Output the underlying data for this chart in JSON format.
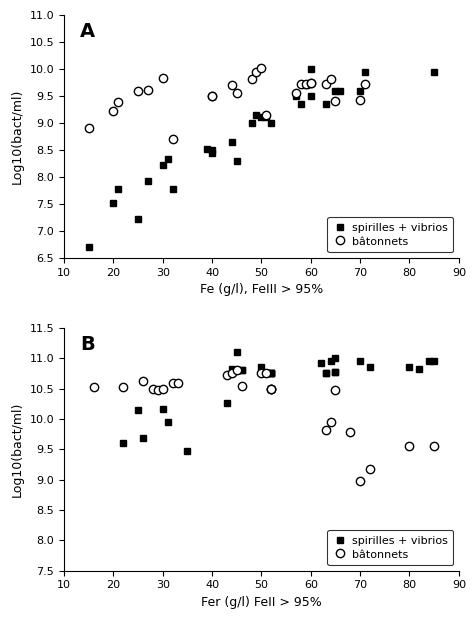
{
  "panel_A": {
    "label": "A",
    "spirilles_x": [
      15,
      20,
      21,
      25,
      27,
      30,
      31,
      32,
      39,
      40,
      40,
      44,
      45,
      48,
      49,
      50,
      51,
      52,
      57,
      58,
      59,
      59,
      60,
      60,
      63,
      65,
      66,
      70,
      71,
      85
    ],
    "spirilles_y": [
      6.7,
      7.52,
      7.78,
      7.22,
      7.92,
      8.22,
      8.33,
      7.78,
      8.52,
      8.5,
      8.45,
      8.65,
      8.3,
      9.0,
      9.15,
      9.12,
      9.12,
      9.0,
      9.5,
      9.35,
      9.7,
      9.72,
      9.5,
      10.0,
      9.35,
      9.6,
      9.6,
      9.6,
      9.95,
      9.95
    ],
    "batonnets_x": [
      15,
      20,
      21,
      25,
      27,
      30,
      32,
      40,
      40,
      44,
      45,
      48,
      49,
      50,
      51,
      57,
      58,
      59,
      60,
      60,
      63,
      64,
      65,
      70,
      71
    ],
    "batonnets_y": [
      8.9,
      9.22,
      9.38,
      9.6,
      9.62,
      9.83,
      8.7,
      9.5,
      9.5,
      9.7,
      9.55,
      9.82,
      9.95,
      10.02,
      9.15,
      9.55,
      9.72,
      9.72,
      9.75,
      9.75,
      9.72,
      9.82,
      9.4,
      9.42,
      9.72
    ],
    "xlim": [
      10,
      90
    ],
    "ylim": [
      6.5,
      11.0
    ],
    "yticks": [
      6.5,
      7.0,
      7.5,
      8.0,
      8.5,
      9.0,
      9.5,
      10.0,
      10.5,
      11.0
    ],
    "xticks": [
      10,
      20,
      30,
      40,
      50,
      60,
      70,
      80,
      90
    ],
    "xlabel": "Fe (g/l), FeIII > 95%",
    "ylabel": "Log10(bact/ml)"
  },
  "panel_B": {
    "label": "B",
    "spirilles_x": [
      22,
      25,
      26,
      30,
      31,
      35,
      43,
      44,
      45,
      45,
      46,
      46,
      50,
      51,
      52,
      52,
      52,
      52,
      62,
      63,
      63,
      64,
      65,
      65,
      65,
      70,
      72,
      80,
      82,
      84,
      85
    ],
    "spirilles_y": [
      9.6,
      10.15,
      9.68,
      10.17,
      9.95,
      9.47,
      10.27,
      10.82,
      10.8,
      11.1,
      10.8,
      10.8,
      10.85,
      10.75,
      10.75,
      10.75,
      10.75,
      10.75,
      10.92,
      10.75,
      10.75,
      10.95,
      11.0,
      10.78,
      10.78,
      10.95,
      10.85,
      10.85,
      10.82,
      10.95,
      10.95
    ],
    "batonnets_x": [
      16,
      22,
      26,
      28,
      29,
      30,
      32,
      33,
      43,
      44,
      45,
      46,
      50,
      51,
      52,
      52,
      52,
      63,
      64,
      65,
      68,
      70,
      72,
      80,
      85
    ],
    "batonnets_y": [
      10.52,
      10.52,
      10.63,
      10.5,
      10.48,
      10.5,
      10.6,
      10.6,
      10.72,
      10.75,
      10.8,
      10.55,
      10.75,
      10.75,
      10.5,
      10.5,
      10.5,
      9.82,
      9.95,
      10.47,
      9.78,
      8.98,
      9.17,
      9.55,
      9.55
    ],
    "xlim": [
      10,
      90
    ],
    "ylim": [
      7.5,
      11.5
    ],
    "yticks": [
      7.5,
      8.0,
      8.5,
      9.0,
      9.5,
      10.0,
      10.5,
      11.0,
      11.5
    ],
    "xticks": [
      10,
      20,
      30,
      40,
      50,
      60,
      70,
      80,
      90
    ],
    "xlabel": "Fer (g/l) FeII > 95%",
    "ylabel": "Log10(bact/ml)"
  },
  "legend_spirilles": "spirilles + vibrios",
  "legend_batonnets": "bâtonnets",
  "marker_spirilles": "s",
  "marker_batonnets": "o",
  "color_spirilles": "#000000",
  "color_batonnets": "#000000",
  "markersize": 5,
  "label_fontsize": 9,
  "tick_fontsize": 8,
  "legend_fontsize": 8,
  "panel_label_fontsize": 14
}
